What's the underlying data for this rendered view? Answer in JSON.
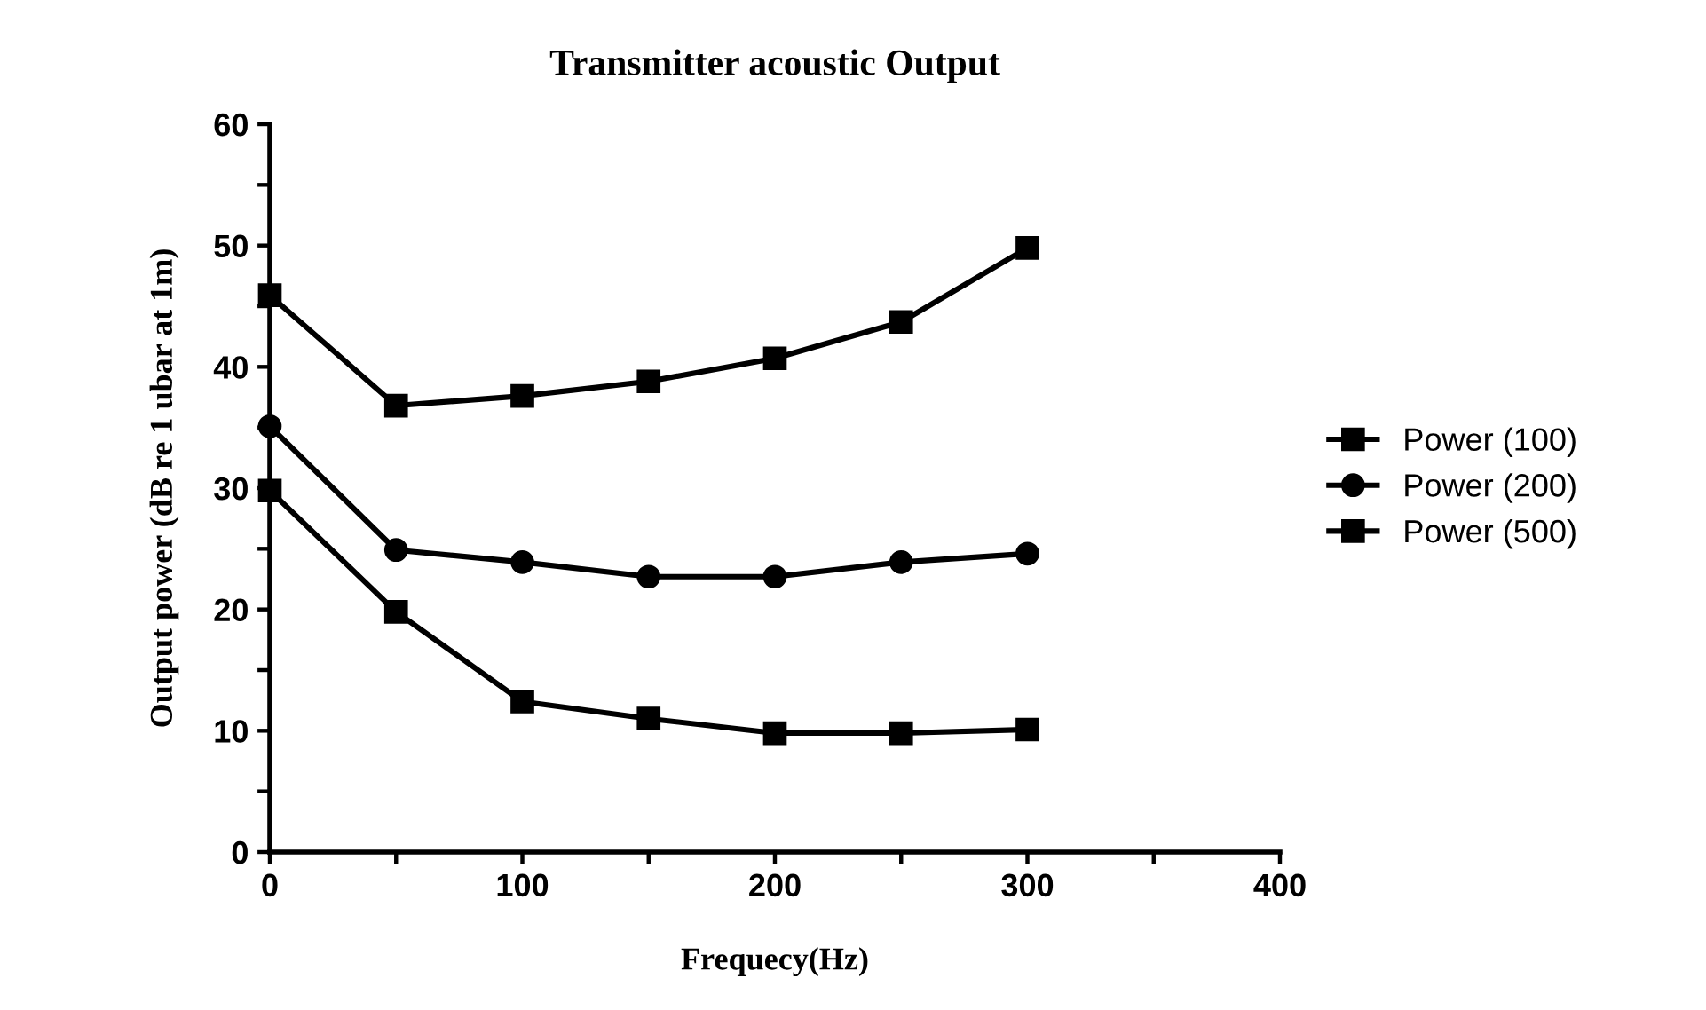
{
  "chart_data": {
    "type": "line",
    "title": "Transmitter acoustic Output",
    "xlabel": "Frequecy(Hz)",
    "ylabel": "Output power (dB re 1 ubar at 1m)",
    "x": [
      0,
      50,
      100,
      150,
      200,
      250,
      300
    ],
    "series": [
      {
        "name": "Power (100)",
        "color": "#000000",
        "marker": "square",
        "values": [
          29.8,
          19.8,
          12.4,
          11.0,
          9.8,
          9.8,
          10.1
        ]
      },
      {
        "name": "Power (200)",
        "color": "#000000",
        "marker": "circle",
        "values": [
          35.1,
          24.9,
          23.9,
          22.7,
          22.7,
          23.9,
          24.6
        ]
      },
      {
        "name": "Power (500)",
        "color": "#000000",
        "marker": "square",
        "values": [
          45.9,
          36.8,
          37.6,
          38.8,
          40.7,
          43.7,
          49.8
        ]
      }
    ],
    "xlim": [
      0,
      400
    ],
    "ylim": [
      0,
      60
    ],
    "xticks": [
      0,
      {
        "value": 50,
        "label": null
      },
      100,
      {
        "value": 150,
        "label": null
      },
      200,
      {
        "value": 250,
        "label": null
      },
      300,
      {
        "value": 350,
        "label": null
      },
      400
    ],
    "yticks": [
      0,
      {
        "value": 5,
        "label": null
      },
      10,
      {
        "value": 15,
        "label": null
      },
      20,
      {
        "value": 25,
        "label": null
      },
      30,
      {
        "value": 35,
        "label": null
      },
      40,
      {
        "value": 45,
        "label": null
      },
      50,
      {
        "value": 55,
        "label": null
      },
      60
    ],
    "grid": false,
    "legend": "right",
    "line_style": "solid"
  }
}
